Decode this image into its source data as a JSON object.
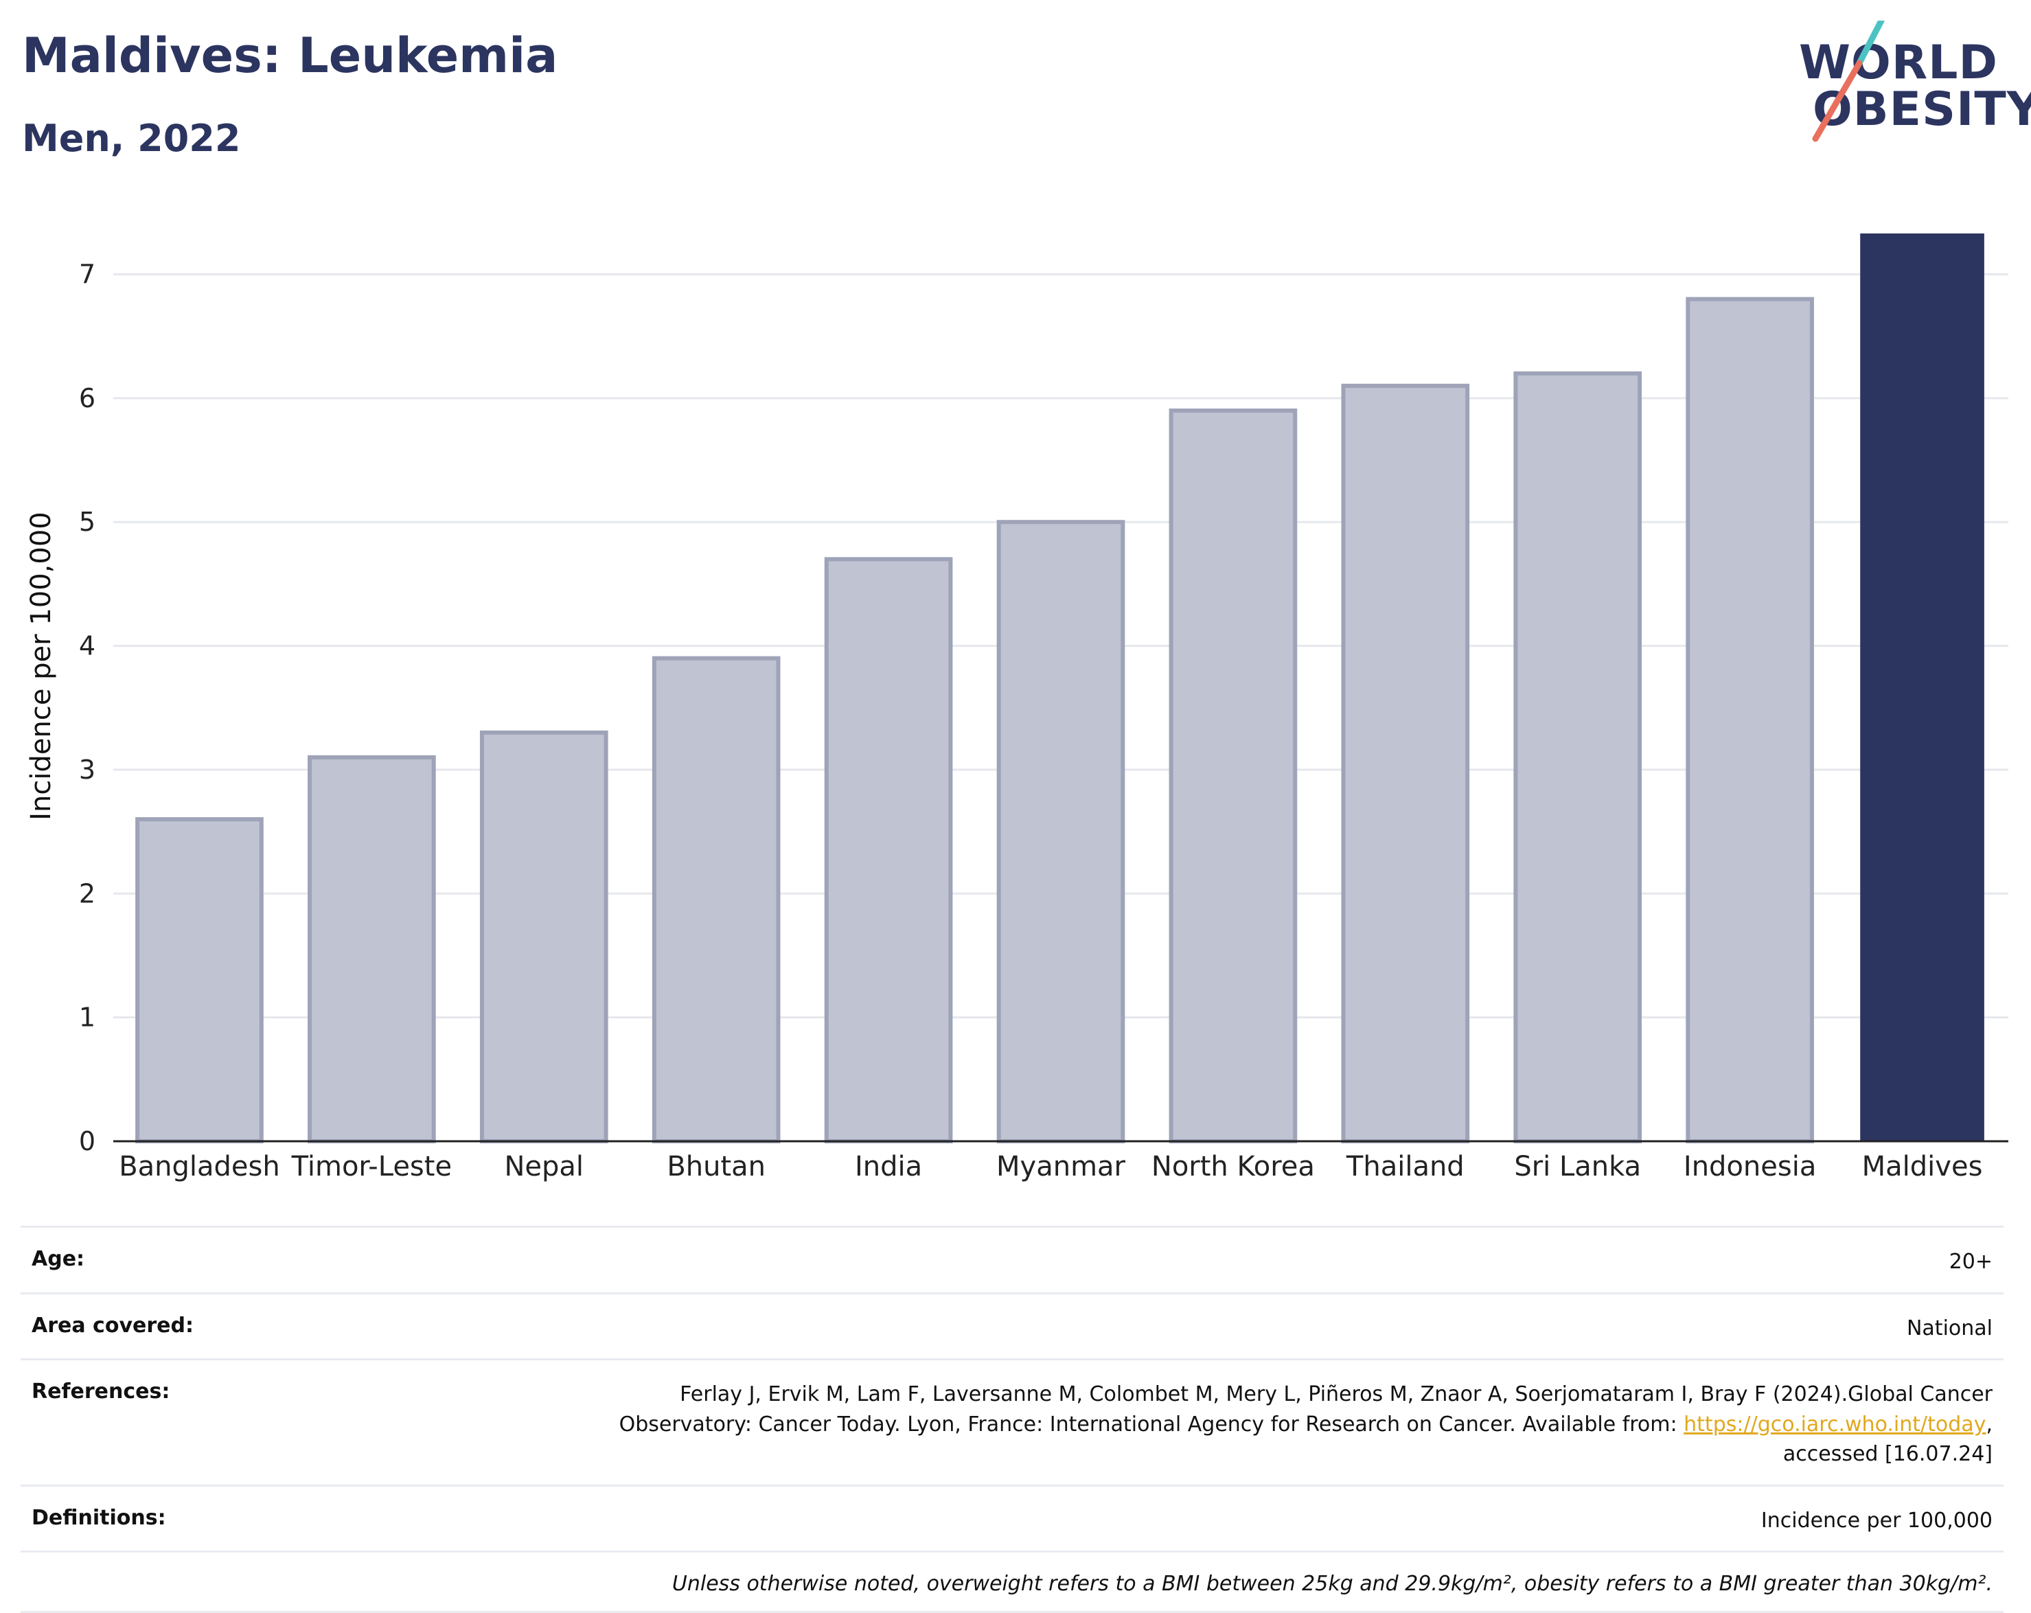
{
  "header": {
    "title": "Maldives: Leukemia",
    "subtitle": "Men, 2022"
  },
  "logo": {
    "line1": "WORLD",
    "line2": "OBESITY",
    "slash_colors": [
      "#4cc3c2",
      "#e8705d"
    ]
  },
  "colors": {
    "highlight": "#2c3560",
    "bar_fill": "#bfc3d2",
    "bar_stroke": "#9ea3b8",
    "grid": "#e6e8ed",
    "link": "#e1a81e"
  },
  "chart_data": {
    "type": "bar",
    "categories": [
      "Bangladesh",
      "Timor-Leste",
      "Nepal",
      "Bhutan",
      "India",
      "Myanmar",
      "North Korea",
      "Thailand",
      "Sri Lanka",
      "Indonesia",
      "Maldives"
    ],
    "values": [
      2.6,
      3.1,
      3.3,
      3.9,
      4.7,
      5.0,
      5.9,
      6.1,
      6.2,
      6.8,
      7.33
    ],
    "highlight": "Maldives",
    "ylabel": "Incidence per 100,000",
    "xlabel": "",
    "ylim": [
      0,
      7.33
    ],
    "yticks": [
      0,
      1,
      2,
      3,
      4,
      5,
      6,
      7
    ],
    "grid": true
  },
  "meta": {
    "age_label": "Age:",
    "age_value": "20+",
    "area_label": "Area covered:",
    "area_value": "National",
    "references_label": "References:",
    "references_line1": "Ferlay J, Ervik M, Lam F, Laversanne M, Colombet M, Mery L, Piñeros M, Znaor A, Soerjomataram I, Bray F (2024).Global Cancer",
    "references_line2": "Observatory: Cancer Today. Lyon, France: International Agency for Research on Cancer. Available from:",
    "references_link": "https://gco.iarc.who.int/today",
    "references_line3": "accessed [16.07.24]",
    "definitions_label": "Definitions:",
    "definitions_value": "Incidence per 100,000",
    "note": "Unless otherwise noted, overweight refers to a BMI between 25kg and 29.9kg/m², obesity refers to a BMI greater than 30kg/m²."
  }
}
